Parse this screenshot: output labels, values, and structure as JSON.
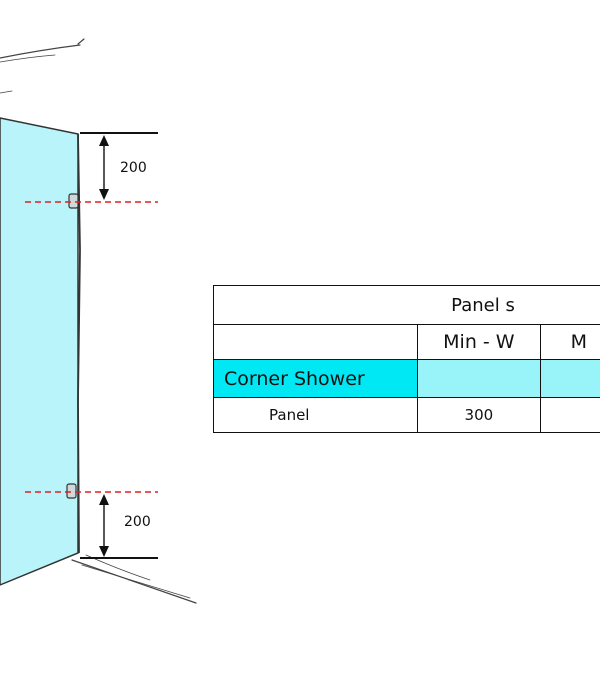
{
  "dimensions": {
    "top_offset": "200",
    "bottom_offset": "200"
  },
  "table": {
    "header": "Panel s",
    "columns": [
      "",
      "Min - W",
      "M"
    ],
    "section_row": {
      "label": "Corner Shower",
      "values": [
        "",
        ""
      ]
    },
    "rows": [
      {
        "label": "Panel",
        "values": [
          "300",
          ""
        ]
      }
    ]
  },
  "colors": {
    "glass": "#b8f4fa",
    "section_highlight": "#00e8f4",
    "section_fill": "#99f4fa",
    "guide_line": "#e02020"
  }
}
